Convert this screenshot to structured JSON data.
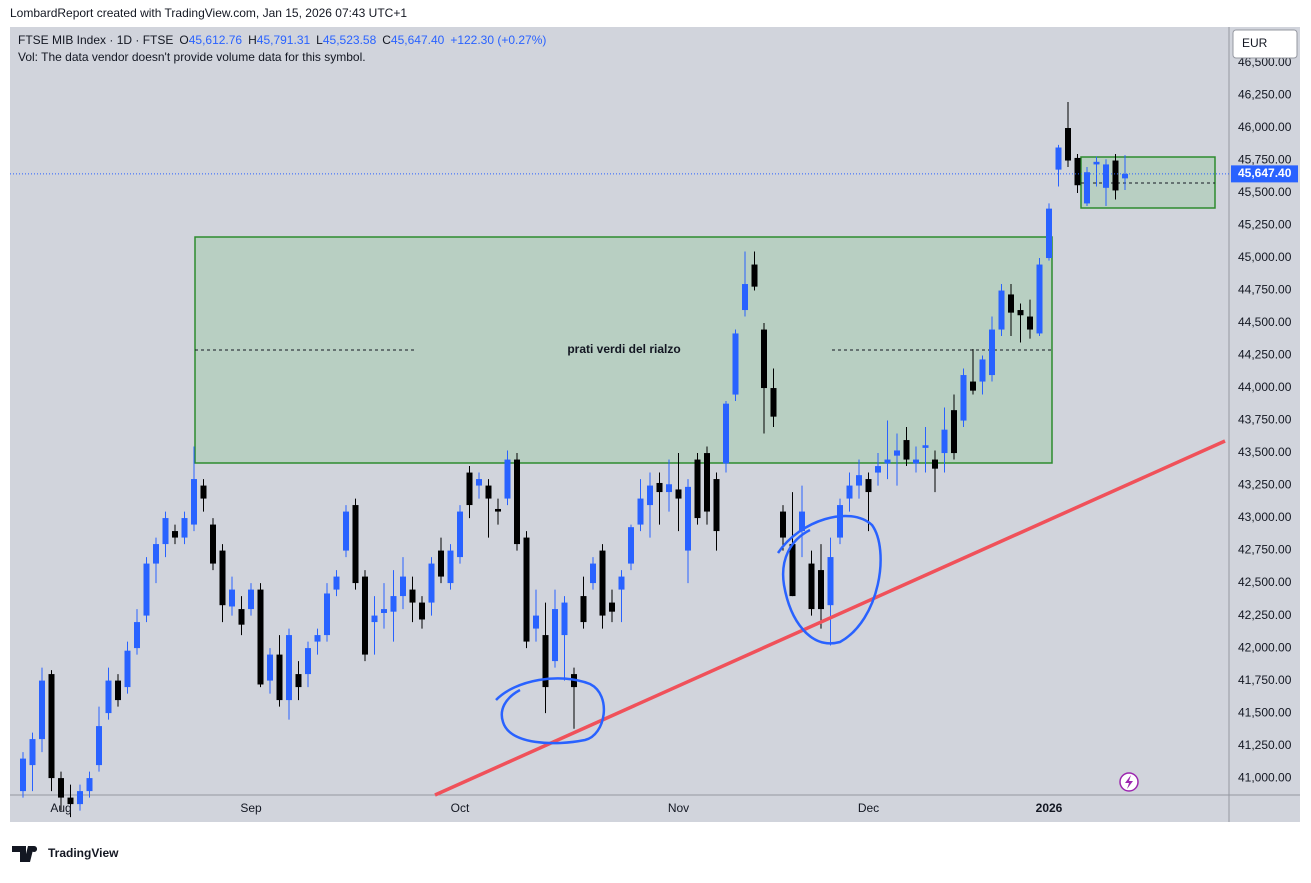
{
  "chart_data": {
    "type": "candlestick",
    "credit": "LombardReport created with TradingView.com, Jan 15, 2026 07:43 UTC+1",
    "symbol": "FTSE MIB Index · 1D · FTSE",
    "legend_ohlc": [
      {
        "key": "O",
        "value": "45,612.76"
      },
      {
        "key": "H",
        "value": "45,791.31"
      },
      {
        "key": "L",
        "value": "45,523.58"
      },
      {
        "key": "C",
        "value": "45,647.40"
      }
    ],
    "change": "+122.30 (+0.27%)",
    "volume_note": "Vol: The data vendor doesn't provide volume data for this symbol.",
    "currency": "EUR",
    "annotation": "prati verdi del rialzo",
    "brand": "TradingView",
    "up_color": "#2962ff",
    "down_color": "#000000",
    "grid": false,
    "categories": [
      null,
      null,
      null,
      null,
      "Aug",
      null,
      null,
      null,
      null,
      null,
      null,
      null,
      null,
      null,
      null,
      null,
      null,
      null,
      null,
      null,
      null,
      null,
      null,
      null,
      "Sep",
      null,
      null,
      null,
      null,
      null,
      null,
      null,
      null,
      null,
      null,
      null,
      null,
      null,
      null,
      null,
      null,
      null,
      null,
      null,
      null,
      null,
      "Oct",
      null,
      null,
      null,
      null,
      null,
      null,
      null,
      null,
      null,
      null,
      null,
      null,
      null,
      null,
      null,
      null,
      null,
      null,
      null,
      null,
      null,
      null,
      "Nov",
      null,
      null,
      null,
      null,
      null,
      null,
      null,
      null,
      null,
      null,
      null,
      null,
      null,
      null,
      null,
      null,
      null,
      null,
      null,
      "Dec",
      null,
      null,
      null,
      null,
      null,
      null,
      null,
      null,
      null,
      null,
      null,
      null,
      null,
      null,
      null,
      null,
      null,
      null,
      "2026",
      null,
      null,
      null,
      null,
      null,
      null,
      null,
      null
    ],
    "open": [
      40900,
      41100,
      41300,
      41800,
      41000,
      40850,
      40800,
      40900,
      41100,
      41500,
      41750,
      41700,
      42000,
      42250,
      42650,
      42800,
      42900,
      42850,
      42950,
      43250,
      42950,
      42750,
      42320,
      42300,
      42300,
      42450,
      41750,
      41950,
      41600,
      41800,
      41800,
      42050,
      42100,
      42450,
      42750,
      43100,
      42550,
      42200,
      42270,
      42280,
      42400,
      42450,
      42350,
      42350,
      42750,
      42500,
      42700,
      43350,
      43250,
      43250,
      43070,
      43150,
      43450,
      42850,
      42150,
      42100,
      41900,
      42100,
      41800,
      42400,
      42500,
      42750,
      42350,
      42450,
      42650,
      42950,
      43100,
      43270,
      43200,
      43220,
      42750,
      43450,
      43500,
      43300,
      43420,
      43950,
      44600,
      44950,
      44450,
      44000,
      43050,
      42800,
      42900,
      42650,
      42600,
      42330,
      42850,
      43150,
      43250,
      43300,
      43350,
      43420,
      43480,
      43600,
      43420,
      43540,
      43450,
      43500,
      43830,
      43750,
      44050,
      44050,
      44100,
      44450,
      44720,
      44600,
      44550,
      44420,
      45000,
      45680,
      46000,
      45770,
      45420,
      45720,
      45540,
      45750,
      45612.76
    ],
    "high": [
      41200,
      41350,
      41850,
      41830,
      41050,
      40950,
      40950,
      41050,
      41550,
      41850,
      41800,
      42050,
      42300,
      42700,
      42850,
      43050,
      42950,
      43050,
      43550,
      43300,
      43000,
      42800,
      42550,
      42400,
      42500,
      42500,
      42000,
      42100,
      42150,
      41900,
      42050,
      42150,
      42500,
      42600,
      43100,
      43150,
      42600,
      42400,
      42500,
      42600,
      42700,
      42550,
      42400,
      42700,
      42850,
      42800,
      43100,
      43400,
      43350,
      43300,
      43150,
      43520,
      43500,
      42900,
      42450,
      42350,
      42450,
      42400,
      41850,
      42550,
      42700,
      42800,
      42450,
      42600,
      42950,
      43300,
      43350,
      43350,
      43450,
      43500,
      43300,
      43500,
      43550,
      43350,
      43900,
      44450,
      45050,
      45050,
      44500,
      44150,
      43100,
      43200,
      43250,
      42750,
      42800,
      42850,
      43150,
      43350,
      43450,
      43350,
      43500,
      43750,
      43650,
      43700,
      43550,
      43700,
      43520,
      43850,
      43950,
      44150,
      44300,
      44250,
      44550,
      44800,
      44800,
      44650,
      44680,
      45000,
      45420,
      45870,
      46200,
      45800,
      45700,
      45780,
      45760,
      45800,
      45791.31
    ],
    "low": [
      40850,
      40900,
      41200,
      40900,
      40750,
      40700,
      40750,
      40850,
      41050,
      41450,
      41550,
      41650,
      41950,
      42200,
      42500,
      42700,
      42800,
      42800,
      42900,
      43050,
      42600,
      42200,
      42250,
      42100,
      42250,
      41700,
      41650,
      41550,
      41450,
      41600,
      41700,
      41950,
      42050,
      42400,
      42700,
      42450,
      41900,
      41950,
      42150,
      42050,
      42300,
      42200,
      42150,
      42250,
      42500,
      42450,
      42650,
      43000,
      43150,
      42850,
      42950,
      43100,
      42750,
      42000,
      42050,
      41500,
      41850,
      41750,
      41380,
      42150,
      42450,
      42150,
      42200,
      42200,
      42600,
      42900,
      42850,
      42950,
      43050,
      42900,
      42500,
      42950,
      42950,
      42750,
      43350,
      43900,
      44550,
      44750,
      43650,
      43700,
      42750,
      42400,
      42700,
      42250,
      42150,
      42020,
      42800,
      43050,
      43150,
      42900,
      43250,
      43300,
      43250,
      43400,
      43350,
      43350,
      43200,
      43350,
      43450,
      43700,
      43950,
      43950,
      44050,
      44400,
      44400,
      44350,
      44380,
      44400,
      44980,
      45550,
      45700,
      45500,
      45400,
      45550,
      45400,
      45450,
      45523.58
    ],
    "close": [
      41150,
      41300,
      41750,
      41000,
      40850,
      40800,
      40900,
      41000,
      41400,
      41750,
      41600,
      41980,
      42200,
      42650,
      42800,
      43000,
      42850,
      43000,
      43300,
      43150,
      42650,
      42330,
      42450,
      42180,
      42450,
      41720,
      41950,
      41600,
      42100,
      41700,
      42000,
      42100,
      42420,
      42550,
      43050,
      42500,
      41950,
      42250,
      42300,
      42400,
      42550,
      42350,
      42220,
      42650,
      42550,
      42750,
      43050,
      43100,
      43300,
      43150,
      43050,
      43450,
      42800,
      42050,
      42250,
      41700,
      42300,
      42350,
      41700,
      42200,
      42650,
      42250,
      42280,
      42550,
      42930,
      43150,
      43250,
      43200,
      43260,
      43150,
      43240,
      43000,
      43050,
      42900,
      43880,
      44420,
      44800,
      44780,
      44000,
      43780,
      42850,
      42400,
      43050,
      42300,
      42300,
      42700,
      43100,
      43250,
      43330,
      43200,
      43400,
      43450,
      43520,
      43450,
      43450,
      43560,
      43380,
      43680,
      43500,
      44100,
      43980,
      44220,
      44450,
      44750,
      44580,
      44560,
      44450,
      44950,
      45380,
      45850,
      45750,
      45560,
      45660,
      45740,
      45720,
      45520,
      45647.4
    ],
    "last_price": {
      "value": 45647.4,
      "label": "45,647.40"
    },
    "ylim": [
      40870,
      46777
    ],
    "yticks": [
      {
        "value": 41000,
        "label": "41,000.00"
      },
      {
        "value": 41250,
        "label": "41,250.00"
      },
      {
        "value": 41500,
        "label": "41,500.00"
      },
      {
        "value": 41750,
        "label": "41,750.00"
      },
      {
        "value": 42000,
        "label": "42,000.00"
      },
      {
        "value": 42250,
        "label": "42,250.00"
      },
      {
        "value": 42500,
        "label": "42,500.00"
      },
      {
        "value": 42750,
        "label": "42,750.00"
      },
      {
        "value": 43000,
        "label": "43,000.00"
      },
      {
        "value": 43250,
        "label": "43,250.00"
      },
      {
        "value": 43500,
        "label": "43,500.00"
      },
      {
        "value": 43750,
        "label": "43,750.00"
      },
      {
        "value": 44000,
        "label": "44,000.00"
      },
      {
        "value": 44250,
        "label": "44,250.00"
      },
      {
        "value": 44500,
        "label": "44,500.00"
      },
      {
        "value": 44750,
        "label": "44,750.00"
      },
      {
        "value": 45000,
        "label": "45,000.00"
      },
      {
        "value": 45250,
        "label": "45,250.00"
      },
      {
        "value": 45500,
        "label": "45,500.00"
      },
      {
        "value": 45750,
        "label": "45,750.00"
      },
      {
        "value": 46000,
        "label": "46,000.00"
      },
      {
        "value": 46250,
        "label": "46,250.00"
      },
      {
        "value": 46500,
        "label": "46,500.00"
      }
    ]
  }
}
